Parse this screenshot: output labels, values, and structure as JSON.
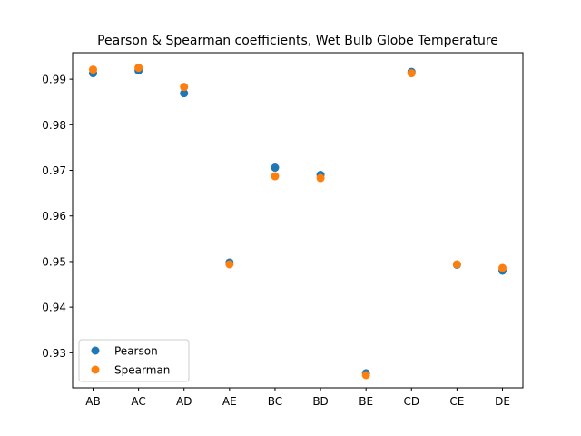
{
  "chart_data": {
    "type": "scatter",
    "title": "Pearson & Spearman coefficients, Wet Bulb Globe Temperature",
    "xlabel": "",
    "ylabel": "",
    "categories": [
      "AB",
      "AC",
      "AD",
      "AE",
      "BC",
      "BD",
      "BE",
      "CD",
      "CE",
      "DE"
    ],
    "ylim": [
      0.9223,
      0.9958
    ],
    "yticks": [
      0.93,
      0.94,
      0.95,
      0.96,
      0.97,
      0.98,
      0.99
    ],
    "ytick_labels": [
      "0.93",
      "0.94",
      "0.95",
      "0.96",
      "0.97",
      "0.98",
      "0.99"
    ],
    "grid": false,
    "legend_position": "lower-left",
    "series": [
      {
        "name": "Pearson",
        "color": "#1f77b4",
        "values": [
          0.9913,
          0.9919,
          0.9869,
          0.9498,
          0.9706,
          0.969,
          0.9255,
          0.9916,
          0.9493,
          0.948
        ]
      },
      {
        "name": "Spearman",
        "color": "#ff7f0e",
        "values": [
          0.9921,
          0.9925,
          0.9883,
          0.9494,
          0.9687,
          0.9683,
          0.9251,
          0.9913,
          0.9494,
          0.9486
        ]
      }
    ]
  }
}
